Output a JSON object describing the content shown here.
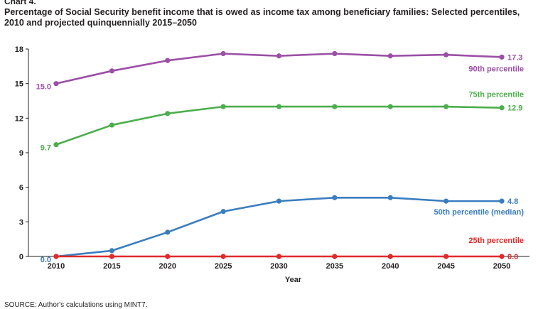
{
  "header": {
    "chart_number": "Chart 4.",
    "title": "Percentage of Social Security benefit income that is owed as income tax among beneficiary families: Selected percentiles, 2010 and projected quinquennially 2015–2050"
  },
  "footer": {
    "source": "SOURCE: Author's calculations using MINT7."
  },
  "chart_data": {
    "type": "line",
    "title": "Percentage of Social Security benefit income that is owed as income tax among beneficiary families: Selected percentiles, 2010 and projected quinquennially 2015–2050",
    "xlabel": "Year",
    "ylabel": "",
    "x": [
      2010,
      2015,
      2020,
      2025,
      2030,
      2035,
      2040,
      2045,
      2050
    ],
    "ylim": [
      0,
      18
    ],
    "yticks": [
      0,
      3,
      6,
      9,
      12,
      15,
      18
    ],
    "grid": false,
    "series": [
      {
        "name": "90th percentile",
        "color": "#9b4fa5",
        "values": [
          15.0,
          16.1,
          17.0,
          17.6,
          17.4,
          17.6,
          17.4,
          17.5,
          17.3
        ],
        "start_label": "15.0",
        "end_label": "17.3"
      },
      {
        "name": "75th percentile",
        "color": "#4cae4c",
        "values": [
          9.7,
          11.4,
          12.4,
          13.0,
          13.0,
          13.0,
          13.0,
          13.0,
          12.9
        ],
        "start_label": "9.7",
        "end_label": "12.9"
      },
      {
        "name": "50th percentile (median)",
        "color": "#3a7dbf",
        "values": [
          0.0,
          0.5,
          2.1,
          3.9,
          4.8,
          5.1,
          5.1,
          4.8,
          4.8
        ],
        "start_label": "0.0",
        "end_label": "4.8"
      },
      {
        "name": "25th percentile",
        "color": "#e02a2a",
        "values": [
          0.0,
          0.0,
          0.0,
          0.0,
          0.0,
          0.0,
          0.0,
          0.0,
          0.0
        ],
        "start_label": "",
        "end_label": "0.0"
      }
    ]
  }
}
